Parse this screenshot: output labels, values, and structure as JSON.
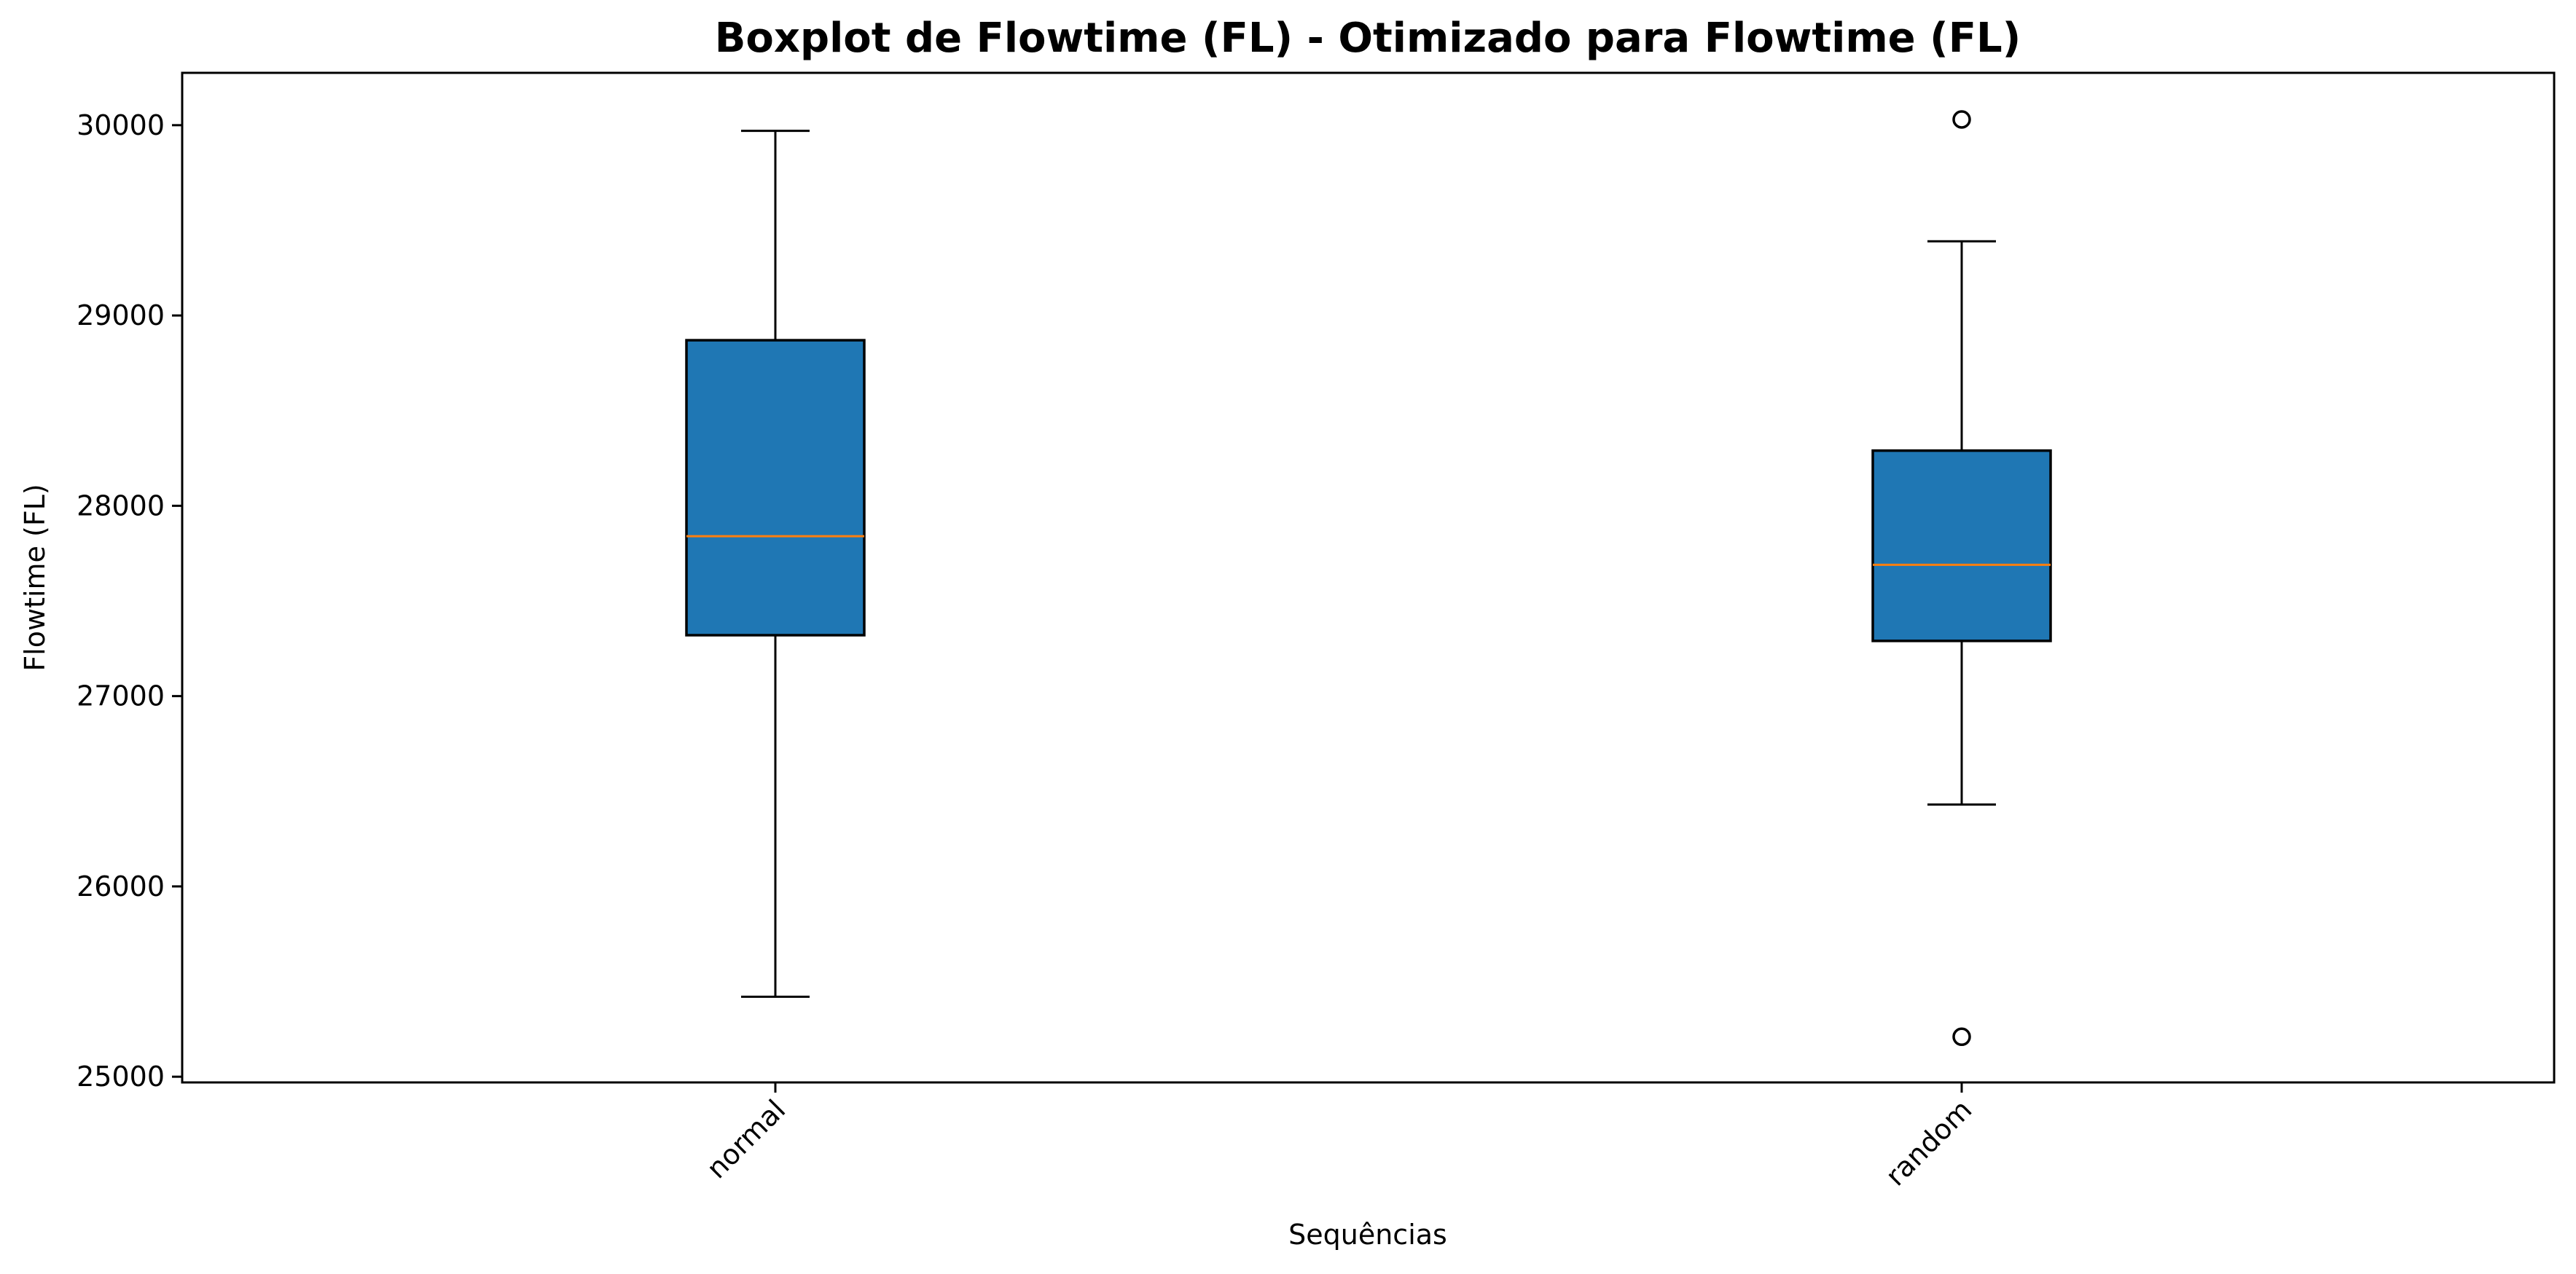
{
  "chart_data": {
    "type": "boxplot",
    "title": "Boxplot de Flowtime (FL) - Otimizado para Flowtime (FL)",
    "xlabel": "Sequências",
    "ylabel": "Flowtime (FL)",
    "ylim": [
      24970,
      30275
    ],
    "yticks": [
      25000,
      26000,
      27000,
      28000,
      29000,
      30000
    ],
    "categories": [
      "normal",
      "random"
    ],
    "boxes": [
      {
        "category": "normal",
        "whisker_low": 25420,
        "q1": 27320,
        "median": 27840,
        "q3": 28870,
        "whisker_high": 29970,
        "outliers": []
      },
      {
        "category": "random",
        "whisker_low": 26430,
        "q1": 27290,
        "median": 27690,
        "q3": 28290,
        "whisker_high": 29390,
        "outliers": [
          30030,
          25210
        ]
      }
    ],
    "grid": false,
    "legend": "none",
    "colors": {
      "box_fill": "#1f77b4",
      "median": "#ff7f0e",
      "edge": "#000000"
    }
  }
}
